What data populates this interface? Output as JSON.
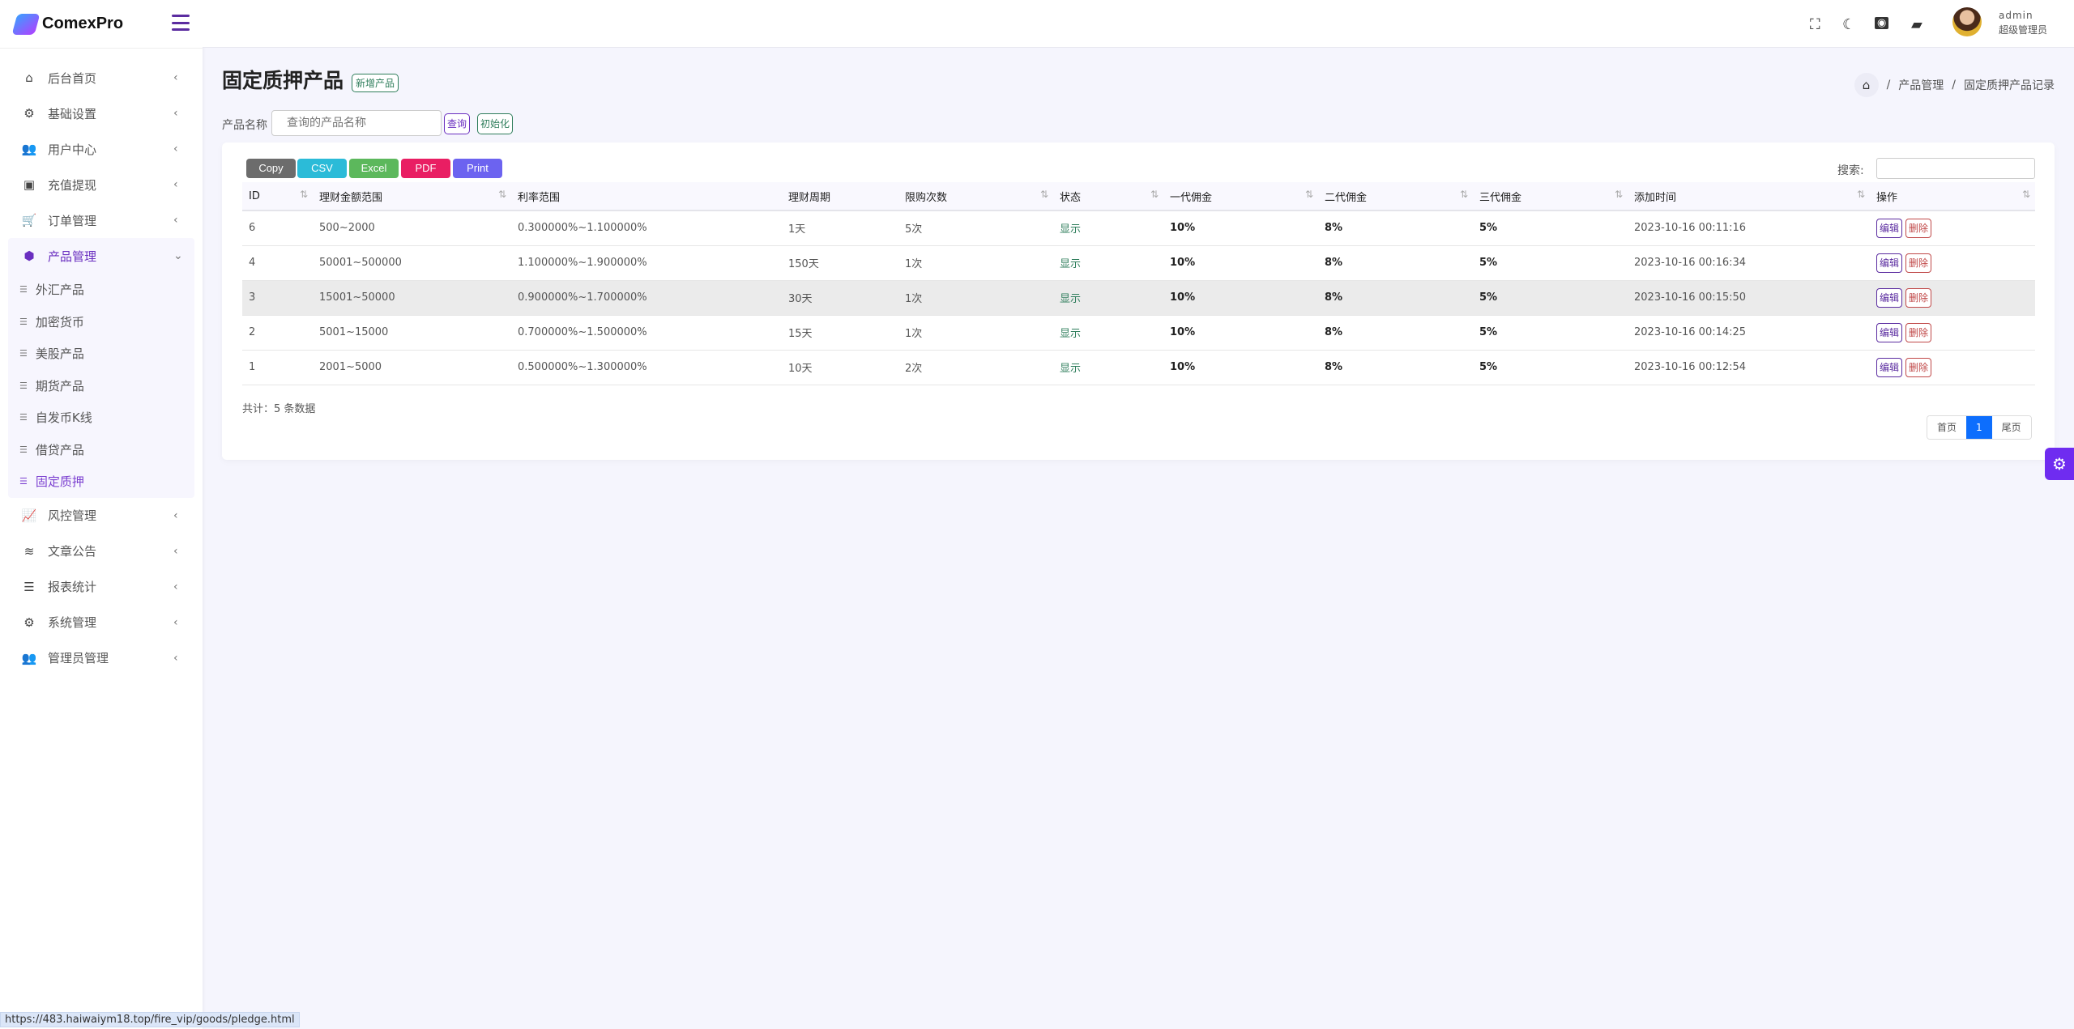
{
  "app": {
    "name": "ComexPro",
    "accent": "#6a2fc0"
  },
  "sidebar": {
    "items": [
      {
        "label": "后台首页",
        "icon": "home-icon"
      },
      {
        "label": "基础设置",
        "icon": "cogs-icon"
      },
      {
        "label": "用户中心",
        "icon": "users-icon"
      },
      {
        "label": "充值提现",
        "icon": "money-icon"
      },
      {
        "label": "订单管理",
        "icon": "cart-icon"
      },
      {
        "label": "产品管理",
        "icon": "cubes-icon",
        "expanded": true,
        "children": [
          "外汇产品",
          "加密货币",
          "美股产品",
          "期货产品",
          "自发币K线",
          "借贷产品",
          "固定质押"
        ],
        "active_child": "固定质押"
      },
      {
        "label": "风控管理",
        "icon": "chart-line-icon"
      },
      {
        "label": "文章公告",
        "icon": "layers-icon"
      },
      {
        "label": "报表统计",
        "icon": "database-icon"
      },
      {
        "label": "系统管理",
        "icon": "gear-icon"
      },
      {
        "label": "管理员管理",
        "icon": "users-group-icon"
      }
    ]
  },
  "header": {
    "user": "admin",
    "role": "超级管理员",
    "icons": [
      "fullscreen-icon",
      "moon-icon",
      "money-icon",
      "message-icon"
    ]
  },
  "page": {
    "title": "固定质押产品",
    "add_label": "新增产品",
    "breadcrumb": [
      "产品管理",
      "固定质押产品记录"
    ]
  },
  "filter": {
    "label": "产品名称",
    "placeholder": "查询的产品名称",
    "value": "",
    "query_label": "查询",
    "reset_label": "初始化"
  },
  "export": [
    {
      "label": "Copy",
      "color": "#6c6c6c"
    },
    {
      "label": "CSV",
      "color": "#2bbbd8"
    },
    {
      "label": "Excel",
      "color": "#5cb85c"
    },
    {
      "label": "PDF",
      "color": "#e91e63"
    },
    {
      "label": "Print",
      "color": "#6c63f0"
    }
  ],
  "search": {
    "label": "搜索:",
    "value": ""
  },
  "table": {
    "columns": [
      "ID",
      "理财金额范围",
      "利率范围",
      "理财周期",
      "限购次数",
      "状态",
      "一代佣金",
      "二代佣金",
      "三代佣金",
      "添加时间",
      "操作"
    ],
    "rows": [
      [
        "6",
        "500~2000",
        "0.300000%~1.100000%",
        "1天",
        "5次",
        "显示",
        "10%",
        "8%",
        "5%",
        "2023-10-16 00:11:16"
      ],
      [
        "4",
        "50001~500000",
        "1.100000%~1.900000%",
        "150天",
        "1次",
        "显示",
        "10%",
        "8%",
        "5%",
        "2023-10-16 00:16:34"
      ],
      [
        "3",
        "15001~50000",
        "0.900000%~1.700000%",
        "30天",
        "1次",
        "显示",
        "10%",
        "8%",
        "5%",
        "2023-10-16 00:15:50"
      ],
      [
        "2",
        "5001~15000",
        "0.700000%~1.500000%",
        "15天",
        "1次",
        "显示",
        "10%",
        "8%",
        "5%",
        "2023-10-16 00:14:25"
      ],
      [
        "1",
        "2001~5000",
        "0.500000%~1.300000%",
        "10天",
        "2次",
        "显示",
        "10%",
        "8%",
        "5%",
        "2023-10-16 00:12:54"
      ]
    ],
    "edit_label": "编辑",
    "delete_label": "删除"
  },
  "total": "共计：5 条数据",
  "pagination": {
    "first": "首页",
    "current": "1",
    "last": "尾页"
  },
  "status_url": "https://483.haiwaiym18.top/fire_vip/goods/pledge.html"
}
